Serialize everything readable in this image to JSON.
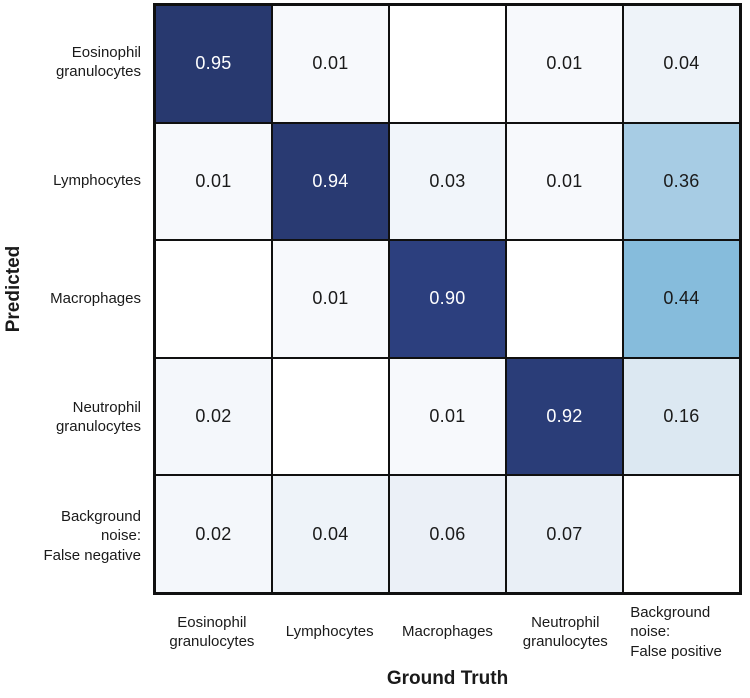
{
  "figure": {
    "x_axis_title": "Ground Truth",
    "y_axis_title": "Predicted"
  },
  "chart_data": {
    "type": "heatmap",
    "title": "",
    "xlabel": "Ground Truth",
    "ylabel": "Predicted",
    "row_labels": [
      [
        "Eosinophil",
        "granulocytes"
      ],
      [
        "Lymphocytes"
      ],
      [
        "Macrophages"
      ],
      [
        "Neutrophil",
        "granulocytes"
      ],
      [
        "Background",
        "noise:",
        "False negative"
      ]
    ],
    "col_labels": [
      [
        "Eosinophil",
        "granulocytes"
      ],
      [
        "Lymphocytes"
      ],
      [
        "Macrophages"
      ],
      [
        "Neutrophil",
        "granulocytes"
      ],
      [
        "Background",
        "noise:",
        "False positive"
      ]
    ],
    "matrix": [
      [
        0.95,
        0.01,
        null,
        0.01,
        0.04
      ],
      [
        0.01,
        0.94,
        0.03,
        0.01,
        0.36
      ],
      [
        null,
        0.01,
        0.9,
        null,
        0.44
      ],
      [
        0.02,
        null,
        0.01,
        0.92,
        0.16
      ],
      [
        0.02,
        0.04,
        0.06,
        0.07,
        null
      ]
    ],
    "value_format": "2-decimals",
    "value_range": [
      0,
      1
    ],
    "grid_line_color": "#101010",
    "dark_text_color": "#1a1a1a",
    "light_text_color": "#ffffff",
    "light_text_threshold": 0.5,
    "colormap_stops": [
      {
        "v": 0.0,
        "c": "#ffffff"
      },
      {
        "v": 0.01,
        "c": "#f7f9fc"
      },
      {
        "v": 0.04,
        "c": "#eef3f9"
      },
      {
        "v": 0.07,
        "c": "#e9eff6"
      },
      {
        "v": 0.16,
        "c": "#dce8f2"
      },
      {
        "v": 0.36,
        "c": "#a7cce4"
      },
      {
        "v": 0.44,
        "c": "#86bcdc"
      },
      {
        "v": 0.9,
        "c": "#2c3f7e"
      },
      {
        "v": 0.95,
        "c": "#28396f"
      },
      {
        "v": 1.0,
        "c": "#243463"
      }
    ],
    "legend": "none",
    "grid": "on"
  }
}
